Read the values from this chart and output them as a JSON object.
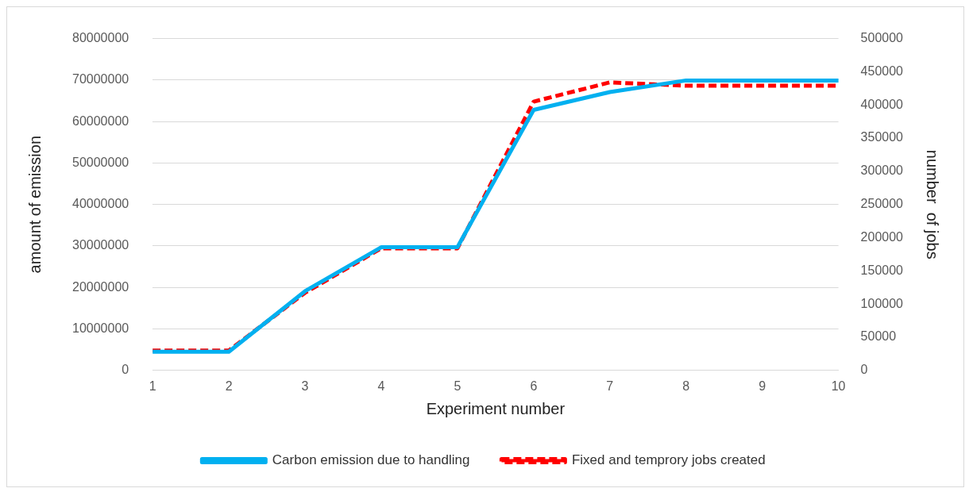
{
  "chart_data": {
    "type": "line",
    "xlabel": "Experiment number",
    "ylabel": "amount of emission",
    "y2label": "number  of jobs",
    "categories": [
      "1",
      "2",
      "3",
      "4",
      "5",
      "6",
      "7",
      "8",
      "9",
      "10"
    ],
    "series": [
      {
        "name": "Carbon emission due to handling",
        "color": "#00b0f0",
        "values": [
          4500000,
          4500000,
          19100000,
          29700000,
          29700000,
          62800000,
          67100000,
          69900000,
          69900000,
          69900000
        ]
      },
      {
        "name": "Fixed and temprory jobs created",
        "color": "#ff0000",
        "axis": "y2",
        "line_style": "dashed",
        "values": [
          30000,
          30000,
          117000,
          184000,
          184000,
          405000,
          434000,
          429000,
          429000,
          429000
        ]
      }
    ],
    "ylim": [
      0,
      80000000
    ],
    "yticks": [
      0,
      10000000,
      20000000,
      30000000,
      40000000,
      50000000,
      60000000,
      70000000,
      80000000
    ],
    "y2lim": [
      0,
      500000
    ],
    "y2ticks": [
      0,
      50000,
      100000,
      150000,
      200000,
      250000,
      300000,
      350000,
      400000,
      450000,
      500000
    ],
    "grid": "y",
    "legend": "bottom",
    "marker": "none"
  }
}
